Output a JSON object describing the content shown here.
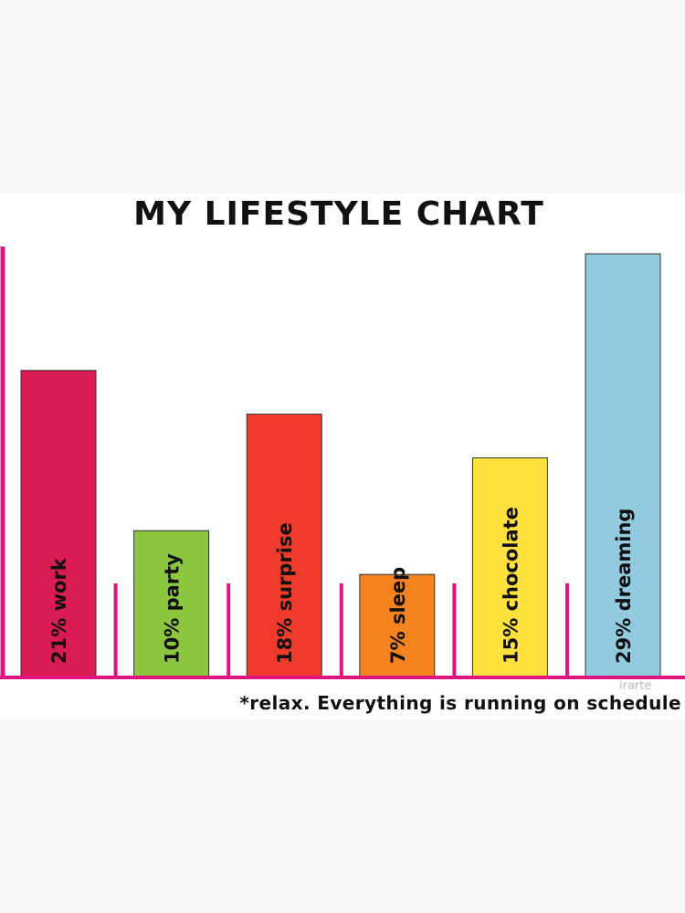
{
  "chart_data": {
    "type": "bar",
    "title": "MY LIFESTYLE CHART",
    "categories": [
      "work",
      "party",
      "surprise",
      "sleep",
      "chocolate",
      "dreaming"
    ],
    "values": [
      21,
      10,
      18,
      7,
      15,
      29
    ],
    "value_labels": [
      "21%",
      "10%",
      "18%",
      "7%",
      "15%",
      "29%"
    ],
    "colors": [
      "#d81b51",
      "#8cc63f",
      "#ee3b2b",
      "#f5821f",
      "#ffe13d",
      "#92cbe0"
    ],
    "axis_color": "#e0147f",
    "ylim": [
      0,
      29
    ],
    "grid": false,
    "footnote": "*relax. Everything is running on schedule",
    "watermark": "irarte"
  }
}
